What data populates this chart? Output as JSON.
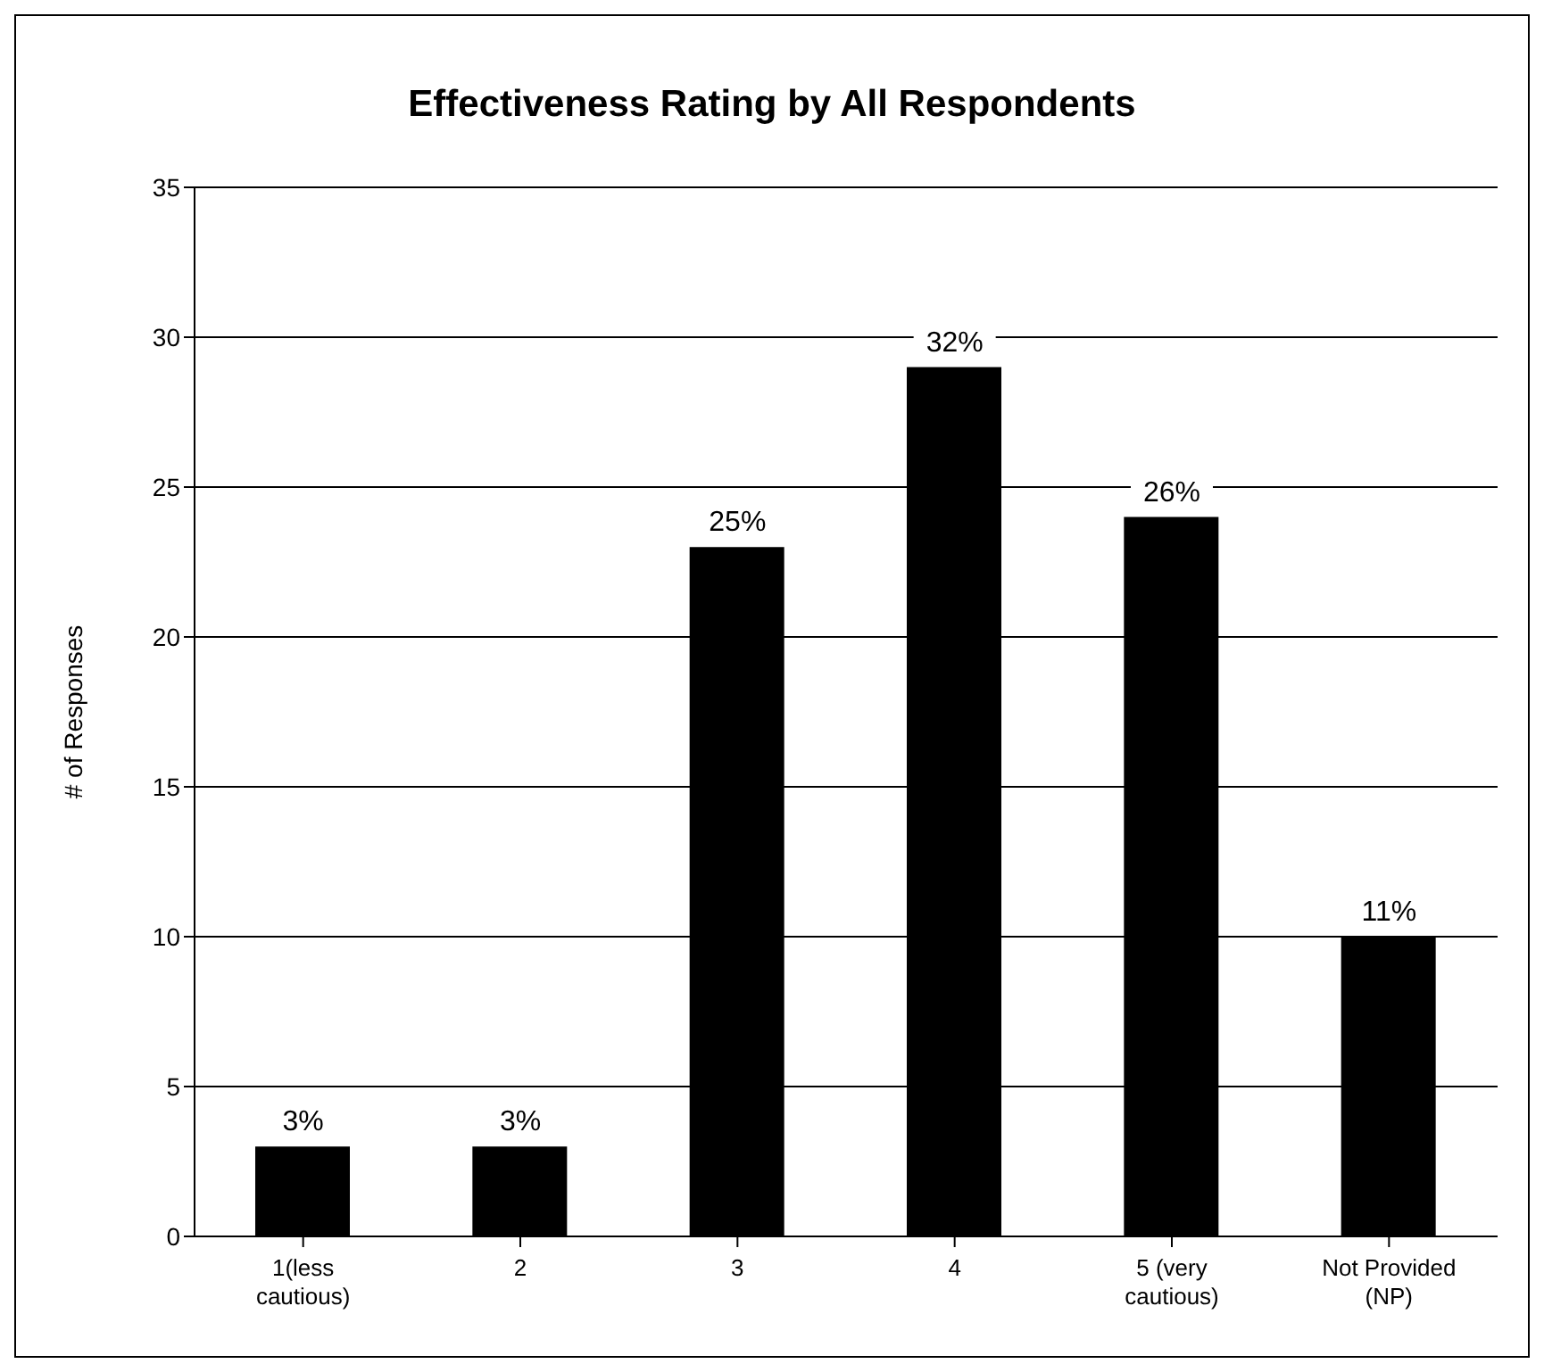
{
  "chart_data": {
    "type": "bar",
    "title": "Effectiveness Rating by All Respondents",
    "ylabel": "# of Responses",
    "categories": [
      "1(less cautious)",
      "2",
      "3",
      "4",
      "5 (very cautious)",
      "Not Provided (NP)"
    ],
    "values": [
      3,
      3,
      23,
      29,
      24,
      10
    ],
    "annotations": [
      {
        "text": "3%",
        "x": "1(less cautious)",
        "y": 3
      },
      {
        "text": "3%",
        "x": "2",
        "y": 3
      },
      {
        "text": "25%",
        "x": "3",
        "y": 23
      },
      {
        "text": "32%",
        "x": "4",
        "y": 29
      },
      {
        "text": "26%",
        "x": "5 (very cautious)",
        "y": 24
      },
      {
        "text": "11%",
        "x": "Not Provided (NP)",
        "y": 10
      }
    ],
    "color": "#000000",
    "ylim": [
      0,
      35
    ],
    "yticks": [
      0,
      5,
      10,
      15,
      20,
      25,
      30,
      35
    ],
    "grid": "y"
  }
}
